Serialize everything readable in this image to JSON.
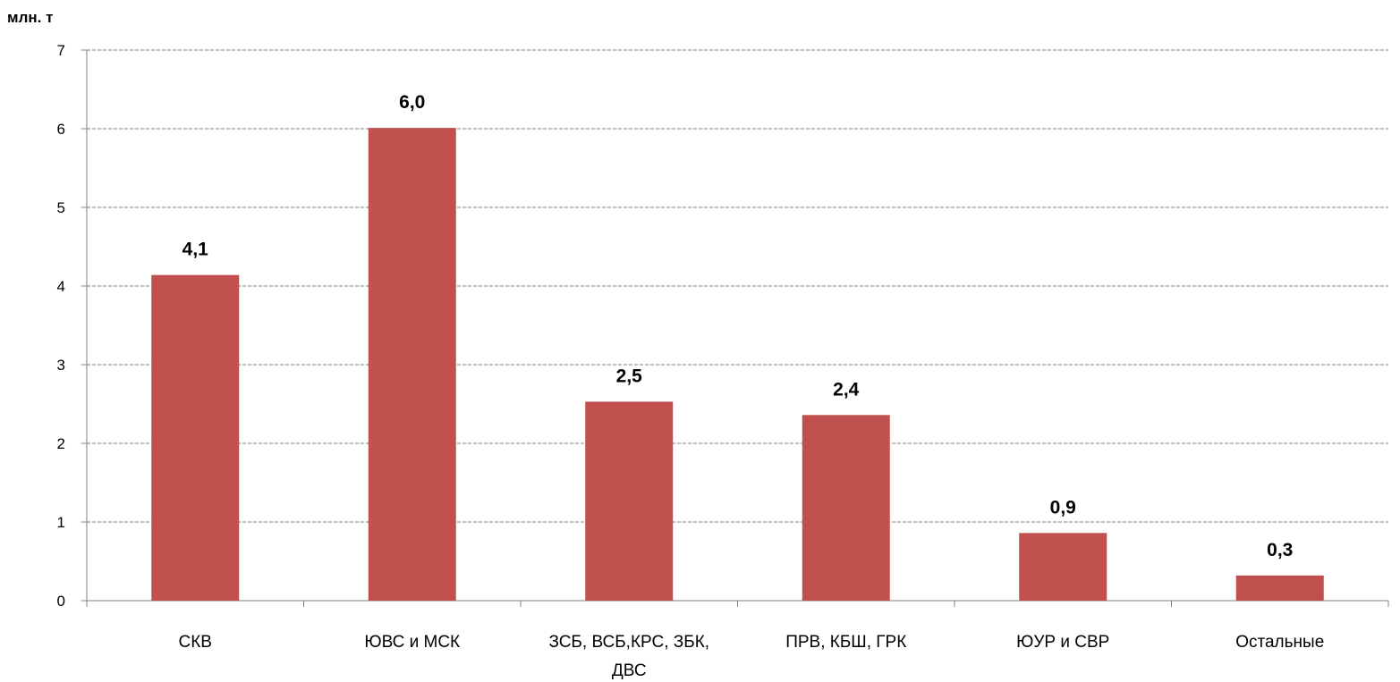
{
  "chart_data": {
    "type": "bar",
    "ylabel": "млн. т",
    "ylim": [
      0,
      7
    ],
    "yticks": [
      "0",
      "1",
      "2",
      "3",
      "4",
      "5",
      "6",
      "7"
    ],
    "grid": true,
    "bar_color": "#C0504D",
    "categories": [
      [
        "СКВ"
      ],
      [
        "ЮВС и МСК"
      ],
      [
        "ЗСБ, ВСБ,КРС, ЗБК,",
        "ДВС"
      ],
      [
        "ПРВ, КБШ, ГРК"
      ],
      [
        "ЮУР и СВР"
      ],
      [
        "Остальные"
      ]
    ],
    "values": [
      4.14,
      6.01,
      2.53,
      2.36,
      0.86,
      0.32
    ],
    "data_labels": [
      "4,1",
      "6,0",
      "2,5",
      "2,4",
      "0,9",
      "0,3"
    ]
  }
}
